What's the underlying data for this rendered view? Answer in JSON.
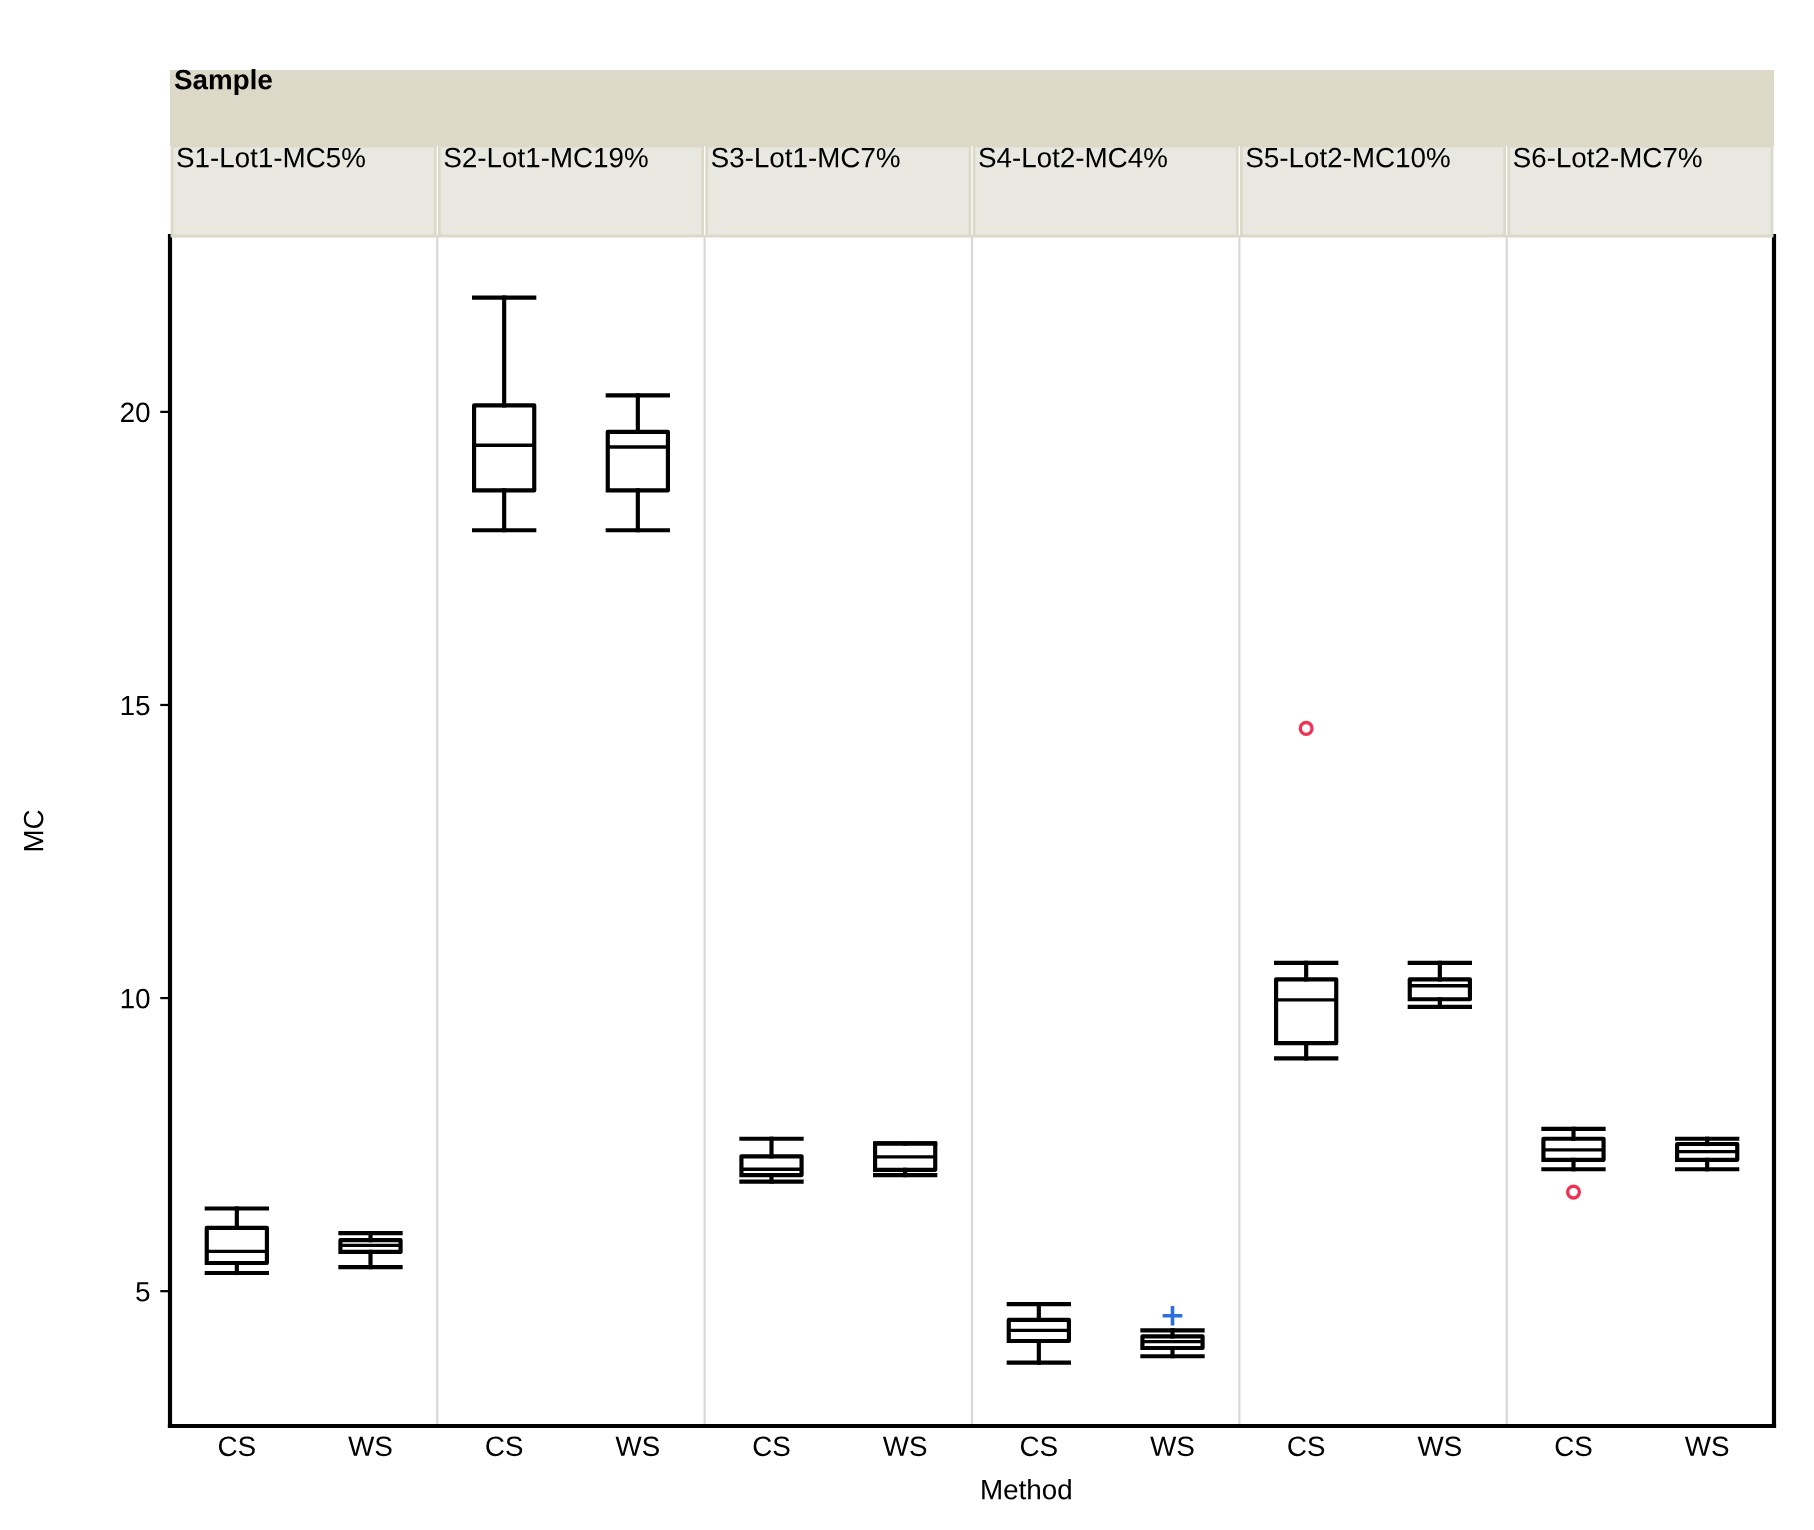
{
  "chart_data": [
    {
      "type": "box",
      "title": "S1-Lot1-MC5%",
      "ylabel": "MC",
      "annotations": [
        "Sample"
      ],
      "categories": [
        "CS",
        "WS"
      ],
      "ylim": [
        2.7,
        23
      ],
      "yticks": [
        5,
        10,
        15,
        20
      ],
      "grid": false,
      "boxes": [
        {
          "low": 5.31,
          "q1": 5.48,
          "median": 5.68,
          "q3": 6.08,
          "high": 6.41
        },
        {
          "low": 5.41,
          "q1": 5.67,
          "median": 5.78,
          "q3": 5.87,
          "high": 5.99
        }
      ]
    },
    {
      "type": "box",
      "title": "S2-Lot1-MC19%",
      "categories": [
        "CS",
        "WS"
      ],
      "ylim": [
        2.7,
        23
      ],
      "tick_labels": "x",
      "grid": false,
      "boxes": [
        {
          "low": 17.98,
          "q1": 18.66,
          "median": 19.43,
          "q3": 20.11,
          "high": 21.95
        },
        {
          "low": 17.98,
          "q1": 18.66,
          "median": 19.4,
          "q3": 19.66,
          "high": 20.28
        }
      ]
    },
    {
      "type": "box",
      "title": "S3-Lot1-MC7%",
      "categories": [
        "CS",
        "WS"
      ],
      "ylim": [
        2.7,
        23
      ],
      "tick_labels": "x",
      "grid": false,
      "boxes": [
        {
          "low": 6.87,
          "q1": 6.98,
          "median": 7.08,
          "q3": 7.3,
          "high": 7.6
        },
        {
          "low": 6.98,
          "q1": 7.07,
          "median": 7.29,
          "q3": 7.52,
          "high": 7.52
        }
      ]
    },
    {
      "type": "box",
      "title": "S4-Lot2-MC4%",
      "xlabel": "Method",
      "categories": [
        "CS",
        "WS"
      ],
      "ylim": [
        2.7,
        23
      ],
      "tick_labels": "x",
      "grid": false,
      "boxes": [
        {
          "low": 3.78,
          "q1": 4.15,
          "median": 4.33,
          "q3": 4.51,
          "high": 4.78
        },
        {
          "low": 3.89,
          "q1": 4.03,
          "median": 4.14,
          "q3": 4.23,
          "high": 4.33
        }
      ],
      "series": [
        {
          "type": "scatter",
          "marker": "cross",
          "color": "#2a6fdb",
          "x": [
            "WS"
          ],
          "values": [
            4.58
          ]
        }
      ]
    },
    {
      "type": "box",
      "title": "S5-Lot2-MC10%",
      "categories": [
        "CS",
        "WS"
      ],
      "ylim": [
        2.7,
        23
      ],
      "tick_labels": "x",
      "grid": false,
      "boxes": [
        {
          "low": 8.97,
          "q1": 9.23,
          "median": 9.97,
          "q3": 10.32,
          "high": 10.6
        },
        {
          "low": 9.85,
          "q1": 9.98,
          "median": 10.21,
          "q3": 10.32,
          "high": 10.6
        }
      ],
      "series": [
        {
          "type": "scatter",
          "marker": "circle",
          "color": "#ee3355",
          "x": [
            "CS"
          ],
          "values": [
            14.6
          ]
        }
      ]
    },
    {
      "type": "box",
      "title": "S6-Lot2-MC7%",
      "categories": [
        "CS",
        "WS"
      ],
      "ylim": [
        2.7,
        23
      ],
      "tick_labels": "x",
      "grid": false,
      "boxes": [
        {
          "low": 7.08,
          "q1": 7.24,
          "median": 7.41,
          "q3": 7.6,
          "high": 7.77
        },
        {
          "low": 7.08,
          "q1": 7.24,
          "median": 7.38,
          "q3": 7.51,
          "high": 7.6
        }
      ],
      "series": [
        {
          "type": "scatter",
          "marker": "circle",
          "color": "#ee3355",
          "x": [
            "CS"
          ],
          "values": [
            6.69
          ]
        }
      ]
    }
  ]
}
